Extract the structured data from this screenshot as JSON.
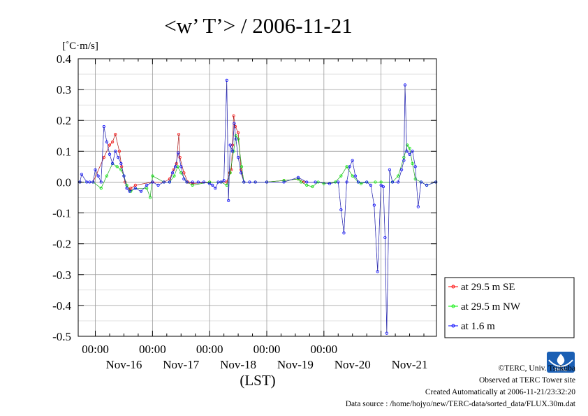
{
  "chart_data": {
    "type": "line",
    "title": "<w’ T’> / 2006-11-21",
    "unit": "[˚C·m/s]",
    "xlabel": "(LST)",
    "ylim": [
      -0.5,
      0.4
    ],
    "yticks": [
      0.4,
      0.3,
      0.2,
      0.1,
      0.0,
      -0.1,
      -0.2,
      -0.3,
      -0.4,
      -0.5
    ],
    "ytick_labels": [
      "0.4",
      "0.3",
      "0.2",
      "0.1",
      "0.0",
      "-0.1",
      "-0.2",
      "-0.3",
      "-0.4",
      "-0.5"
    ],
    "x_days": [
      16,
      17,
      18,
      19,
      20,
      21
    ],
    "x_tick_labels": [
      "00:00",
      "00:00",
      "00:00",
      "00:00",
      "00:00"
    ],
    "x_day_labels": [
      "Nov-16",
      "Nov-17",
      "Nov-18",
      "Nov-19",
      "Nov-20",
      "Nov-21"
    ],
    "grid": true,
    "legend_position": "bottom-right",
    "series": [
      {
        "name": "at 29.5 m SE",
        "color": "#ff0000",
        "x": [
          15.73,
          15.96,
          16.15,
          16.25,
          16.3,
          16.35,
          16.42,
          16.46,
          16.52,
          16.6,
          16.62,
          16.7,
          17.0,
          17.2,
          17.3,
          17.37,
          17.42,
          17.46,
          17.48,
          17.55,
          17.62,
          17.7,
          18.0,
          18.2,
          18.3,
          18.35,
          18.38,
          18.4,
          18.42,
          18.45,
          18.5,
          18.55,
          18.6,
          18.8,
          19.0,
          19.3,
          19.55,
          19.65
        ],
        "y": [
          0.0,
          0.0,
          0.08,
          0.12,
          0.13,
          0.155,
          0.1,
          0.05,
          0.0,
          -0.025,
          -0.02,
          -0.01,
          0.0,
          0.0,
          0.01,
          0.04,
          0.06,
          0.155,
          0.08,
          0.03,
          0.0,
          -0.005,
          0.0,
          0.0,
          0.0,
          0.03,
          0.04,
          0.12,
          0.215,
          0.18,
          0.16,
          0.04,
          0.0,
          0.0,
          0.0,
          0.005,
          0.01,
          0.0
        ]
      },
      {
        "name": "at 29.5 m NW",
        "color": "#00ee00",
        "x": [
          15.73,
          15.96,
          16.1,
          16.2,
          16.3,
          16.38,
          16.45,
          16.5,
          16.55,
          16.62,
          16.7,
          16.9,
          16.96,
          17.0,
          17.2,
          17.3,
          17.38,
          17.44,
          17.5,
          17.6,
          17.7,
          18.0,
          18.2,
          18.3,
          18.36,
          18.42,
          18.46,
          18.5,
          18.56,
          18.6,
          18.8,
          19.0,
          19.3,
          19.55,
          19.6,
          19.7,
          19.8,
          19.9,
          20.0,
          20.2,
          20.3,
          20.4,
          20.5,
          20.6,
          20.65,
          20.75,
          20.9,
          21.0,
          21.2,
          21.3,
          21.4,
          21.46,
          21.5,
          21.55,
          21.6,
          21.7,
          21.8,
          21.96
        ],
        "y": [
          0.0,
          0.0,
          -0.02,
          0.02,
          0.06,
          0.05,
          0.04,
          0.02,
          -0.01,
          -0.03,
          -0.02,
          -0.02,
          -0.05,
          0.02,
          0.0,
          0.0,
          0.02,
          0.05,
          0.03,
          0.0,
          -0.01,
          0.0,
          0.0,
          -0.01,
          0.03,
          0.1,
          0.15,
          0.14,
          0.05,
          0.0,
          0.0,
          0.0,
          0.005,
          0.01,
          0.0,
          -0.01,
          -0.015,
          0.0,
          -0.005,
          0.0,
          0.02,
          0.05,
          0.02,
          0.0,
          -0.005,
          0.0,
          0.0,
          0.0,
          0.0,
          0.02,
          0.08,
          0.12,
          0.11,
          0.06,
          0.01,
          0.0,
          -0.01,
          0.0
        ]
      },
      {
        "name": "at 1.6 m",
        "color": "#0000ff",
        "x": [
          15.73,
          15.76,
          15.85,
          15.9,
          15.96,
          16.0,
          16.05,
          16.1,
          16.15,
          16.2,
          16.25,
          16.3,
          16.35,
          16.4,
          16.45,
          16.5,
          16.55,
          16.6,
          16.7,
          16.8,
          16.9,
          17.0,
          17.1,
          17.2,
          17.3,
          17.35,
          17.4,
          17.45,
          17.5,
          17.55,
          17.6,
          17.7,
          17.8,
          17.9,
          18.0,
          18.05,
          18.1,
          18.15,
          18.2,
          18.25,
          18.3,
          18.33,
          18.36,
          18.4,
          18.43,
          18.46,
          18.5,
          18.55,
          18.6,
          18.7,
          18.8,
          19.0,
          19.3,
          19.55,
          19.7,
          19.85,
          20.1,
          20.25,
          20.3,
          20.35,
          20.4,
          20.45,
          20.5,
          20.55,
          20.6,
          20.75,
          20.82,
          20.88,
          20.94,
          21.0,
          21.04,
          21.07,
          21.1,
          21.15,
          21.2,
          21.3,
          21.36,
          21.4,
          21.42,
          21.45,
          21.5,
          21.55,
          21.6,
          21.65,
          21.7,
          21.8,
          21.96
        ],
        "y": [
          0.0,
          0.025,
          0.0,
          0.0,
          0.0,
          0.04,
          0.02,
          0.0,
          0.18,
          0.13,
          0.09,
          0.06,
          0.1,
          0.08,
          0.06,
          0.02,
          -0.02,
          -0.03,
          -0.02,
          -0.03,
          -0.01,
          0.0,
          -0.01,
          0.0,
          0.0,
          0.03,
          0.05,
          0.095,
          0.05,
          0.01,
          0.0,
          0.0,
          0.0,
          0.0,
          -0.005,
          -0.01,
          -0.02,
          0.0,
          0.0,
          0.005,
          0.33,
          -0.06,
          0.12,
          0.1,
          0.19,
          0.14,
          0.08,
          0.03,
          0.0,
          0.0,
          0.0,
          0.0,
          0.0,
          0.015,
          0.0,
          0.0,
          -0.005,
          0.0,
          -0.09,
          -0.165,
          0.0,
          0.05,
          0.07,
          0.02,
          0.0,
          0.0,
          -0.01,
          -0.075,
          -0.29,
          -0.01,
          -0.015,
          -0.18,
          -0.49,
          0.04,
          0.0,
          0.0,
          0.04,
          0.07,
          0.315,
          0.1,
          0.09,
          0.1,
          0.05,
          -0.08,
          0.0,
          -0.01,
          0.0
        ]
      }
    ]
  },
  "credits": {
    "copyright": "©TERC, Univ. Tsukuba",
    "observed": "Observed at TERC Tower site",
    "created": "Created Automatically at 2006-11-21/23:32:20",
    "source": "Data source : /home/hojyo/new/TERC-data/sorted_data/FLUX.30m.dat",
    "logo_text": "TERC"
  }
}
